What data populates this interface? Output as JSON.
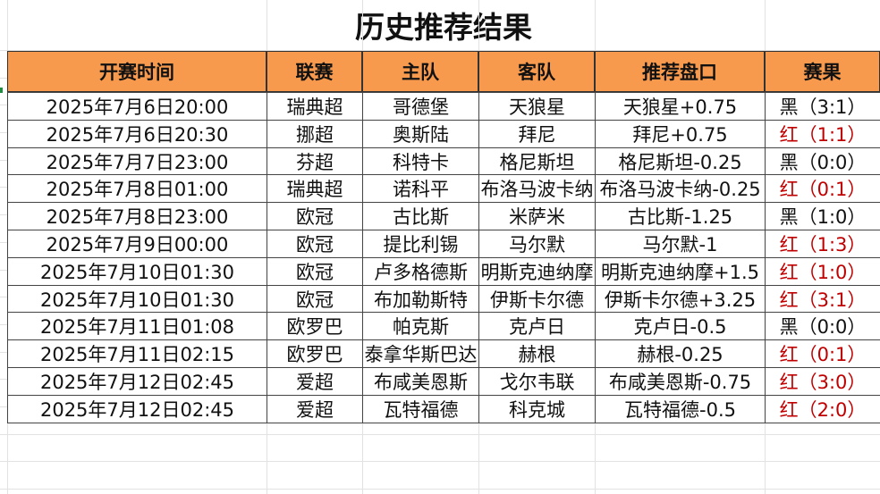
{
  "title": "历史推荐结果",
  "table": {
    "header_color": "#f79a4e",
    "columns": [
      "开赛时间",
      "联赛",
      "主队",
      "客队",
      "推荐盘口",
      "赛果"
    ],
    "rows": [
      [
        "2025年7月6日20:00",
        "瑞典超",
        "哥德堡",
        "天狼星",
        "天狼星+0.75",
        "黑（3:1）"
      ],
      [
        "2025年7月6日20:30",
        "挪超",
        "奥斯陆",
        "拜尼",
        "拜尼+0.75",
        "红（1:1）"
      ],
      [
        "2025年7月7日23:00",
        "芬超",
        "科特卡",
        "格尼斯坦",
        "格尼斯坦-0.25",
        "黑（0:0）"
      ],
      [
        "2025年7月8日01:00",
        "瑞典超",
        "诺科平",
        "布洛马波卡纳",
        "布洛马波卡纳-0.25",
        "红（0:1）"
      ],
      [
        "2025年7月8日23:00",
        "欧冠",
        "古比斯",
        "米萨米",
        "古比斯-1.25",
        "黑（1:0）"
      ],
      [
        "2025年7月9日00:00",
        "欧冠",
        "提比利锡",
        "马尔默",
        "马尔默-1",
        "红（1:3）"
      ],
      [
        "2025年7月10日01:30",
        "欧冠",
        "卢多格德斯",
        "明斯克迪纳摩",
        "明斯克迪纳摩+1.5",
        "红（1:0）"
      ],
      [
        "2025年7月10日01:30",
        "欧冠",
        "布加勒斯特",
        "伊斯卡尔德",
        "伊斯卡尔德+3.25",
        "红（3:1）"
      ],
      [
        "2025年7月11日01:08",
        "欧罗巴",
        "帕克斯",
        "克卢日",
        "克卢日-0.5",
        "黑（0:0）"
      ],
      [
        "2025年7月11日02:15",
        "欧罗巴",
        "泰拿华斯巴达",
        "赫根",
        "赫根-0.25",
        "红（0:1）"
      ],
      [
        "2025年7月12日02:45",
        "爱超",
        "布咸美恩斯",
        "戈尔韦联",
        "布咸美恩斯-0.75",
        "红（3:0）"
      ],
      [
        "2025年7月12日02:45",
        "爱超",
        "瓦特福德",
        "科克城",
        "瓦特福德-0.5",
        "红（2:0）"
      ]
    ],
    "result_colors": [
      "#111111",
      "#c00000",
      "#111111",
      "#c00000",
      "#111111",
      "#c00000",
      "#c00000",
      "#c00000",
      "#111111",
      "#c00000",
      "#c00000",
      "#c00000"
    ]
  }
}
